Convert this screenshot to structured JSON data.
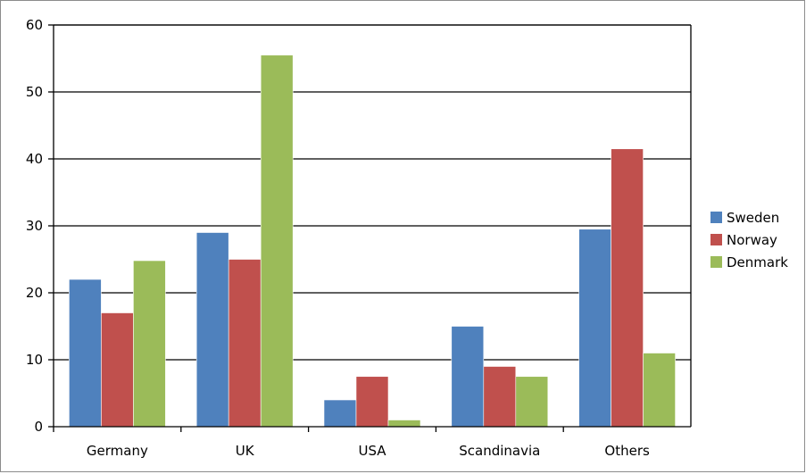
{
  "chart_data": {
    "type": "bar",
    "title": "",
    "xlabel": "",
    "ylabel": "",
    "categories": [
      "Germany",
      "UK",
      "USA",
      "Scandinavia",
      "Others"
    ],
    "series": [
      {
        "name": "Sweden",
        "values": [
          22,
          29,
          4,
          15,
          29.5
        ]
      },
      {
        "name": "Norway",
        "values": [
          17,
          25,
          7.5,
          9,
          41.5
        ]
      },
      {
        "name": "Denmark",
        "values": [
          24.8,
          55.5,
          1,
          7.5,
          11
        ]
      }
    ],
    "colors": [
      "#4f81bd",
      "#c0504d",
      "#9bbb59"
    ],
    "ylim": [
      0,
      60
    ],
    "yticks": [
      "0",
      "10",
      "20",
      "30",
      "40",
      "50",
      "60"
    ],
    "grid": true,
    "legend_position": "right"
  }
}
